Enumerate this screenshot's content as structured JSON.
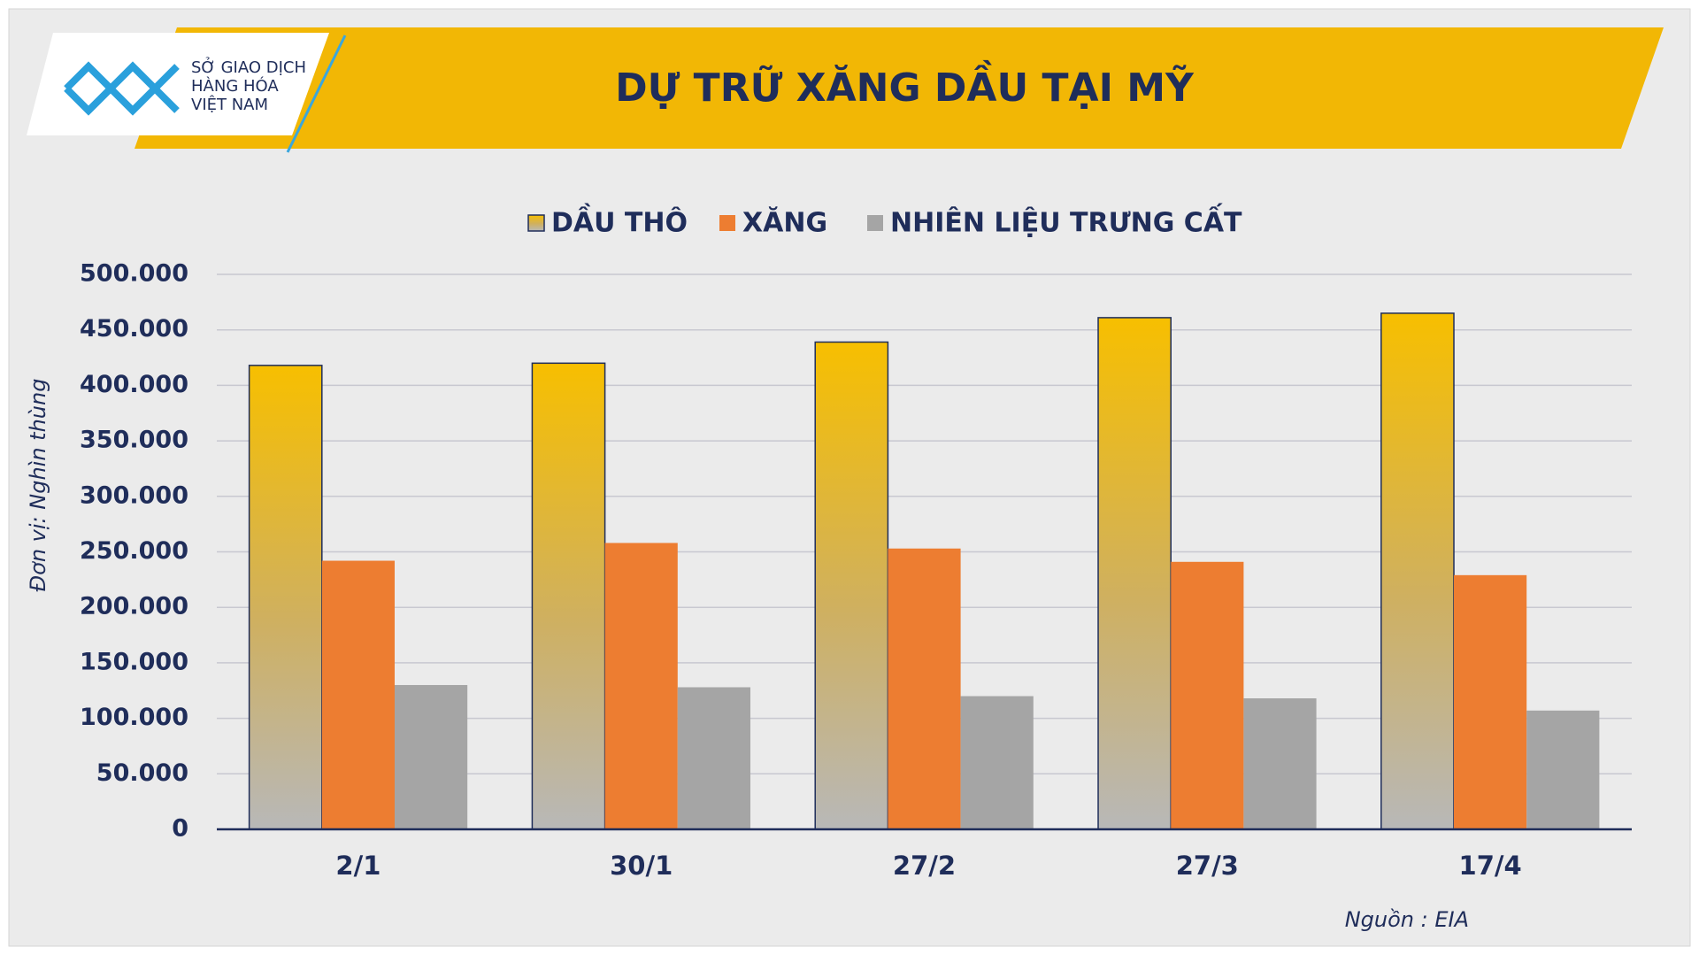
{
  "chart_data": {
    "type": "bar",
    "title": "DỰ TRỮ XĂNG DẦU TẠI MỸ",
    "logo_text": [
      "SỞ GIAO DỊCH",
      "HÀNG HÓA",
      "VIỆT NAM"
    ],
    "y_label": "Đơn vị: Nghìn thùng",
    "source": "Nguồn : EIA",
    "categories": [
      "2/1",
      "30/1",
      "27/2",
      "27/3",
      "17/4"
    ],
    "series": [
      {
        "name": "DẦU THÔ",
        "color": "#f5b800",
        "values": [
          418000,
          420000,
          439000,
          461000,
          465000
        ]
      },
      {
        "name": "XĂNG",
        "color": "#ed7d31",
        "values": [
          242000,
          258000,
          253000,
          241000,
          229000
        ]
      },
      {
        "name": "NHIÊN LIỆU TRƯNG CẤT",
        "color": "#a5a5a5",
        "values": [
          130000,
          128000,
          120000,
          118000,
          107000
        ]
      }
    ],
    "ylim": [
      0,
      500000
    ],
    "yticks": [
      0,
      {
        "value": 50000,
        "label": "50.000"
      },
      {
        "value": 100000,
        "label": "100.000"
      },
      {
        "value": 150000,
        "label": "150.000"
      },
      {
        "value": 200000,
        "label": "200.000"
      },
      {
        "value": 250000,
        "label": "250.000"
      },
      {
        "value": 300000,
        "label": "300.000"
      },
      {
        "value": 350000,
        "label": "350.000"
      },
      {
        "value": 400000,
        "label": "400.000"
      },
      {
        "value": 450000,
        "label": "450.000"
      },
      {
        "value": 500000,
        "label": "500.000"
      }
    ],
    "grid": true
  }
}
